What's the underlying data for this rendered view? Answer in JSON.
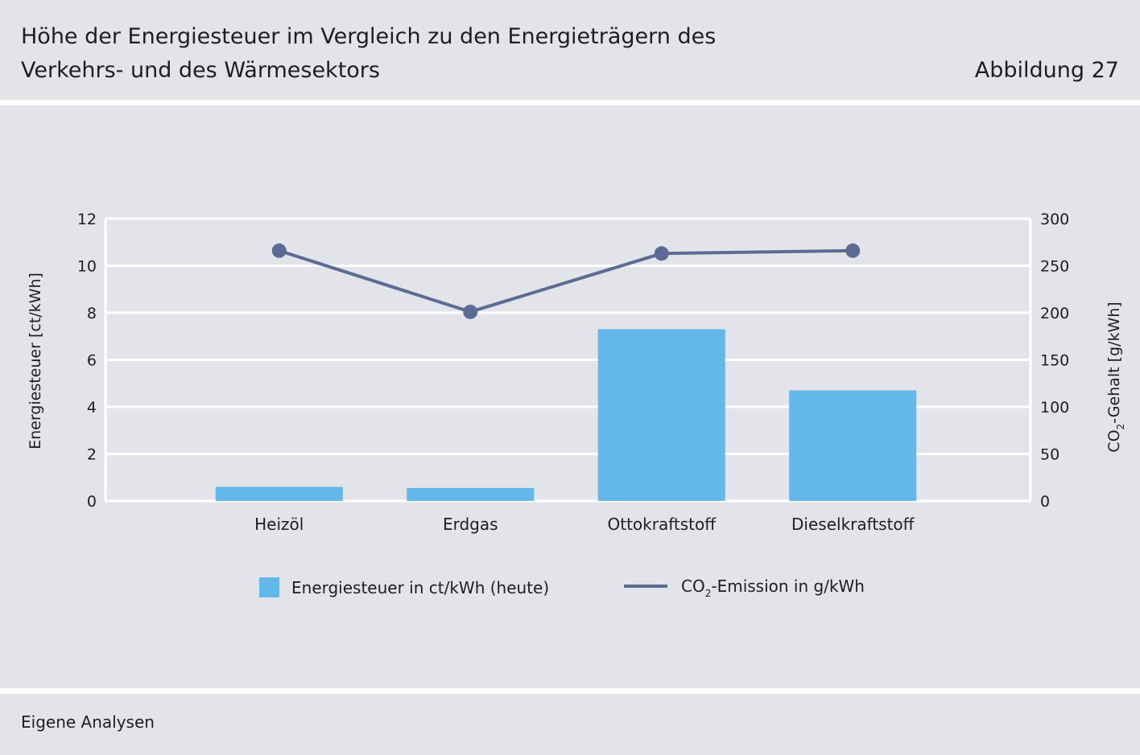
{
  "header": {
    "title_line1": "Höhe der Energiesteuer im Vergleich zu den Energieträgern des",
    "title_line2": "Verkehrs- und des Wärmesektors",
    "figure_label": "Abbildung 27"
  },
  "footer": {
    "source": "Eigene Analysen"
  },
  "colors": {
    "bar": "#63b8ea",
    "line": "#5b6b92",
    "grid": "#ffffff",
    "panel": "#e3e4ea"
  },
  "chart_data": {
    "type": "bar",
    "categories": [
      "Heizöl",
      "Erdgas",
      "Ottokraftstoff",
      "Dieselkraftstoff"
    ],
    "series": [
      {
        "name": "Energiesteuer in ct/kWh (heute)",
        "type": "bar",
        "axis": "left",
        "values": [
          0.6,
          0.55,
          7.3,
          4.7
        ]
      },
      {
        "name": "CO",
        "name_sub": "2",
        "name_rest": "-Emission in g/kWh",
        "type": "line",
        "axis": "right",
        "values": [
          266,
          201,
          263,
          266
        ]
      }
    ],
    "ylabel_left": "Energiesteuer [ct/kWh]",
    "ylabel_right": "CO",
    "ylabel_right_sub": "2",
    "ylabel_right_rest": "-Gehalt [g/kWh]",
    "ylim_left": [
      0,
      12
    ],
    "ylim_right": [
      0,
      300
    ],
    "yticks_left": [
      "0",
      "2",
      "4",
      "6",
      "8",
      "10",
      "12"
    ],
    "yticks_right": [
      "0",
      "50",
      "100",
      "150",
      "200",
      "250",
      "300"
    ],
    "grid": true,
    "legend_position": "bottom"
  }
}
